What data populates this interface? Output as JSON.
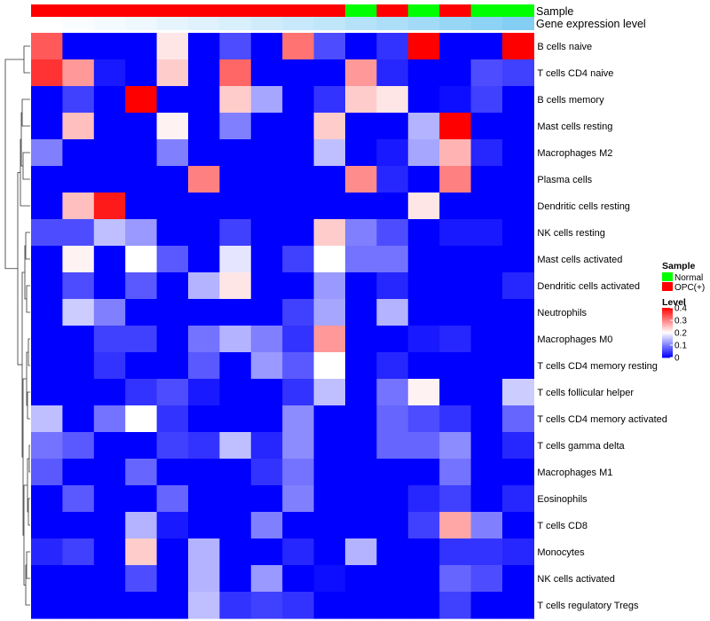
{
  "chart_data": {
    "type": "heatmap",
    "title": "",
    "annotation_labels": {
      "sample": "Sample",
      "gene_expression": "Gene expression level"
    },
    "sample_groups": [
      "OPC(+)",
      "OPC(+)",
      "OPC(+)",
      "OPC(+)",
      "OPC(+)",
      "OPC(+)",
      "OPC(+)",
      "OPC(+)",
      "OPC(+)",
      "OPC(+)",
      "Normal",
      "OPC(+)",
      "Normal",
      "OPC(+)",
      "Normal",
      "Normal"
    ],
    "sample_colors": {
      "Normal": "#00ff00",
      "OPC(+)": "#ff0000"
    },
    "gene_expression_colors": [
      "#ffffff",
      "#fafdff",
      "#f4fbfe",
      "#eef8fe",
      "#e6f5fd",
      "#dff2fd",
      "#d8effc",
      "#d0ecfb",
      "#c8e9fb",
      "#c0e6fa",
      "#b6e2f9",
      "#acdef8",
      "#a2daf7",
      "#98d6f6",
      "#8ed2f5",
      "#84cef4"
    ],
    "rows": [
      "B cells naive",
      "T cells CD4 naive",
      "B cells memory",
      "Mast cells resting",
      "Macrophages M2",
      "Plasma cells",
      "Dendritic cells resting",
      "NK cells resting",
      "Mast cells activated",
      "Dendritic cells activated",
      "Neutrophils",
      "Macrophages M0",
      "T cells CD4 memory resting",
      "T cells follicular helper",
      "T cells CD4 memory activated",
      "T cells gamma delta",
      "Macrophages M1",
      "Eosinophils",
      "T cells CD8",
      "Monocytes",
      "NK cells activated",
      "T cells regulatory  Tregs"
    ],
    "values": [
      [
        0.33,
        0,
        0,
        0,
        0.22,
        0,
        0.06,
        0,
        0.31,
        0.06,
        0,
        0.04,
        0.4,
        0,
        0,
        0.4
      ],
      [
        0.36,
        0.28,
        0.02,
        0,
        0.24,
        0,
        0.32,
        0,
        0,
        0,
        0.28,
        0.03,
        0,
        0,
        0.06,
        0.05
      ],
      [
        0,
        0.05,
        0,
        0.4,
        0,
        0,
        0.24,
        0.13,
        0,
        0.04,
        0.24,
        0.22,
        0,
        0.01,
        0.05,
        0
      ],
      [
        0,
        0.25,
        0,
        0,
        0.21,
        0,
        0.1,
        0,
        0,
        0.24,
        0,
        0,
        0.14,
        0.4,
        0,
        0
      ],
      [
        0.1,
        0,
        0,
        0,
        0.1,
        0,
        0,
        0,
        0,
        0.15,
        0,
        0.02,
        0.13,
        0.26,
        0.03,
        0
      ],
      [
        0,
        0,
        0,
        0,
        0,
        0.3,
        0,
        0,
        0,
        0,
        0.29,
        0.03,
        0,
        0.3,
        0,
        0
      ],
      [
        0,
        0.25,
        0.38,
        0,
        0,
        0,
        0,
        0,
        0,
        0,
        0,
        0,
        0.22,
        0,
        0,
        0
      ],
      [
        0.06,
        0.06,
        0.15,
        0.12,
        0,
        0,
        0.05,
        0,
        0,
        0.24,
        0.1,
        0.06,
        0,
        0.02,
        0.02,
        0
      ],
      [
        0,
        0.21,
        0,
        0.2,
        0.07,
        0,
        0.18,
        0,
        0.05,
        0.2,
        0.09,
        0.09,
        0,
        0,
        0,
        0
      ],
      [
        0,
        0.06,
        0,
        0.07,
        0,
        0.14,
        0.22,
        0,
        0,
        0.12,
        0,
        0.03,
        0,
        0,
        0,
        0.03
      ],
      [
        0,
        0.16,
        0.1,
        0,
        0,
        0,
        0,
        0,
        0.05,
        0.13,
        0,
        0.14,
        0,
        0,
        0,
        0
      ],
      [
        0,
        0,
        0.05,
        0.05,
        0,
        0.09,
        0.14,
        0.1,
        0.04,
        0.28,
        0,
        0,
        0.02,
        0.03,
        0,
        0
      ],
      [
        0,
        0,
        0.04,
        0,
        0,
        0.07,
        0,
        0.12,
        0.07,
        0.2,
        0,
        0.03,
        0,
        0,
        0,
        0
      ],
      [
        0,
        0,
        0,
        0.04,
        0.06,
        0.02,
        0,
        0,
        0.04,
        0.15,
        0,
        0.09,
        0.21,
        0,
        0,
        0.16
      ],
      [
        0.15,
        0,
        0.09,
        0.2,
        0.04,
        0,
        0,
        0,
        0.11,
        0,
        0,
        0.08,
        0.06,
        0.04,
        0,
        0.08
      ],
      [
        0.09,
        0.07,
        0,
        0,
        0.05,
        0.04,
        0.15,
        0.03,
        0.11,
        0,
        0,
        0.08,
        0.08,
        0.11,
        0,
        0.03
      ],
      [
        0.07,
        0,
        0,
        0.08,
        0,
        0,
        0,
        0.04,
        0.09,
        0,
        0,
        0,
        0,
        0.09,
        0,
        0
      ],
      [
        0,
        0.07,
        0,
        0,
        0.08,
        0,
        0,
        0,
        0.1,
        0,
        0,
        0,
        0.03,
        0.05,
        0,
        0.03
      ],
      [
        0,
        0,
        0,
        0.14,
        0.02,
        0,
        0,
        0.1,
        0,
        0,
        0,
        0,
        0.05,
        0.27,
        0.1,
        0
      ],
      [
        0.03,
        0.05,
        0,
        0.24,
        0,
        0.14,
        0,
        0,
        0.03,
        0,
        0.14,
        0,
        0,
        0.04,
        0.04,
        0.03
      ],
      [
        0,
        0,
        0,
        0.06,
        0,
        0.14,
        0,
        0.12,
        0,
        0.01,
        0,
        0,
        0,
        0.08,
        0.06,
        0
      ],
      [
        0,
        0,
        0,
        0,
        0,
        0.15,
        0.04,
        0.05,
        0.04,
        0,
        0,
        0,
        0,
        0.05,
        0,
        0
      ]
    ],
    "color_scale": {
      "low": "#0000ff",
      "mid": "#ffffff",
      "high": "#ff0000",
      "min": 0,
      "mid_value": 0.2,
      "max": 0.4
    },
    "legend": {
      "position": "right",
      "sample_title": "Sample",
      "sample_entries": [
        "Normal",
        "OPC(+)"
      ],
      "level_title": "Level",
      "level_ticks": [
        "0.4",
        "0.3",
        "0.2",
        "0.1",
        "0"
      ],
      "level_tick_values": [
        0.4,
        0.3,
        0.2,
        0.1,
        0
      ]
    },
    "row_dendrogram": true,
    "grid": false
  }
}
